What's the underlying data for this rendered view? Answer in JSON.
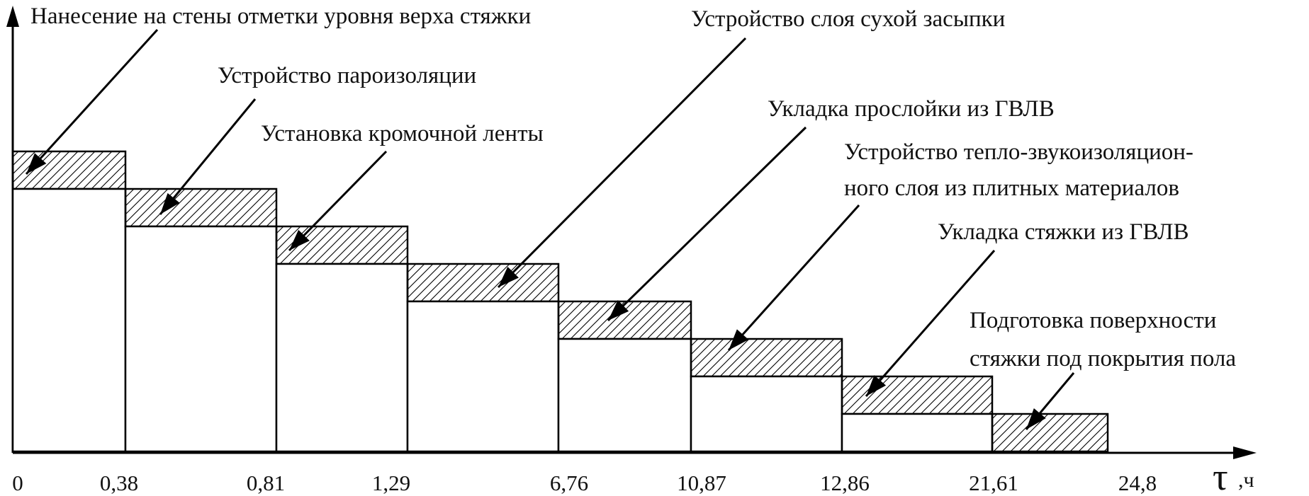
{
  "axis": {
    "x_symbol": "τ",
    "x_unit": ",ч"
  },
  "chart_data": {
    "type": "stepped-staircase",
    "x": [
      "0",
      "0,38",
      "0,81",
      "1,29",
      "6,76",
      "10,87",
      "12,86",
      "21,61",
      "24,8"
    ],
    "operations": [
      {
        "interval": [
          "0",
          "0,38"
        ],
        "label_lines": [
          "Нанесение на стены отметки уровня верха стяжки"
        ]
      },
      {
        "interval": [
          "0,38",
          "0,81"
        ],
        "label_lines": [
          "Устройство пароизоляции"
        ]
      },
      {
        "interval": [
          "0,81",
          "1,29"
        ],
        "label_lines": [
          "Установка кромочной ленты"
        ]
      },
      {
        "interval": [
          "1,29",
          "6,76"
        ],
        "label_lines": [
          "Устройство слоя сухой засыпки"
        ]
      },
      {
        "interval": [
          "6,76",
          "10,87"
        ],
        "label_lines": [
          "Укладка прослойки из ГВЛВ"
        ]
      },
      {
        "interval": [
          "10,87",
          "12,86"
        ],
        "label_lines": [
          "Устройство тепло-звукоизоляцион-",
          "ного слоя из плитных материалов"
        ]
      },
      {
        "interval": [
          "12,86",
          "21,61"
        ],
        "label_lines": [
          "Укладка стяжки из ГВЛВ"
        ]
      },
      {
        "interval": [
          "21,61",
          "24,8"
        ],
        "label_lines": [
          "Подготовка поверхности",
          "стяжки под покрытия пола"
        ]
      }
    ]
  }
}
